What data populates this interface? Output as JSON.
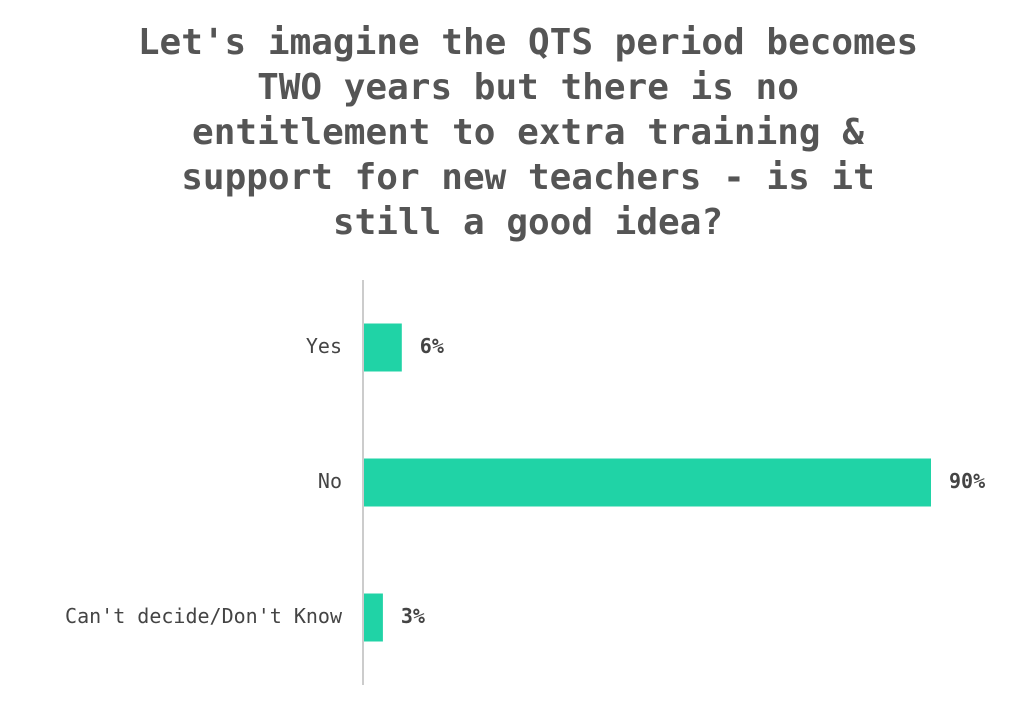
{
  "chart_data": {
    "type": "bar",
    "orientation": "horizontal",
    "title": "Let's imagine the QTS period becomes TWO years but there is no entitlement to extra training & support for new teachers - is it still a good idea?",
    "categories": [
      "Yes",
      "No",
      "Can't decide/Don't Know"
    ],
    "values": [
      6,
      90,
      3
    ],
    "value_labels": [
      "6%",
      "90%",
      "3%"
    ],
    "color": "#20d3a6"
  }
}
